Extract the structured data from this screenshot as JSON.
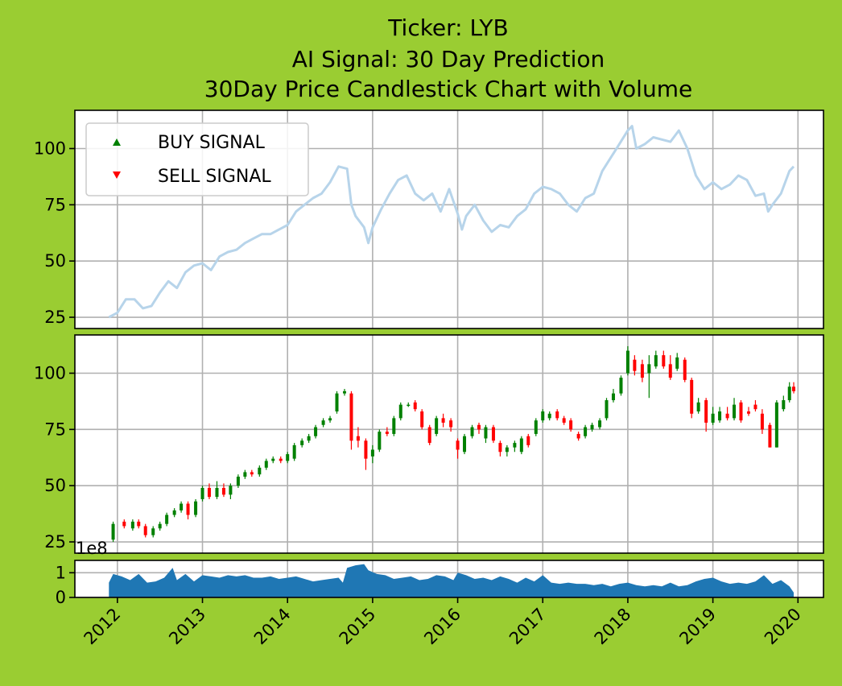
{
  "chart_data": {
    "title_lines": [
      "Ticker: LYB",
      "AI Signal: 30 Day Prediction",
      "30Day Price Candlestick Chart with Volume"
    ],
    "type": "line+candlestick+area",
    "x_ticks": [
      "2012",
      "2013",
      "2014",
      "2015",
      "2016",
      "2017",
      "2018",
      "2019",
      "2020"
    ],
    "x_range": [
      2011.5,
      2020.3
    ],
    "y_ticks_price": [
      25,
      50,
      75,
      100
    ],
    "y_range_price": [
      20,
      117
    ],
    "y_ticks_volume": [
      0,
      1
    ],
    "y_range_volume": [
      0,
      1.5
    ],
    "volume_offset_label": "1e8",
    "legend": [
      {
        "label": "BUY SIGNAL",
        "color": "#008000",
        "marker": "up-triangle"
      },
      {
        "label": "SELL SIGNAL",
        "color": "#ff0000",
        "marker": "down-triangle"
      }
    ],
    "price_line": {
      "name": "Close",
      "color": "#b7d4ea",
      "x": [
        2011.9,
        2012.0,
        2012.1,
        2012.2,
        2012.3,
        2012.4,
        2012.5,
        2012.6,
        2012.7,
        2012.8,
        2012.9,
        2013.0,
        2013.1,
        2013.2,
        2013.3,
        2013.4,
        2013.5,
        2013.6,
        2013.7,
        2013.8,
        2013.9,
        2014.0,
        2014.1,
        2014.2,
        2014.3,
        2014.4,
        2014.5,
        2014.6,
        2014.7,
        2014.75,
        2014.8,
        2014.9,
        2014.95,
        2015.0,
        2015.1,
        2015.2,
        2015.3,
        2015.4,
        2015.5,
        2015.6,
        2015.7,
        2015.8,
        2015.9,
        2016.0,
        2016.05,
        2016.1,
        2016.2,
        2016.3,
        2016.4,
        2016.5,
        2016.6,
        2016.7,
        2016.8,
        2016.9,
        2017.0,
        2017.1,
        2017.2,
        2017.3,
        2017.4,
        2017.5,
        2017.6,
        2017.7,
        2017.8,
        2017.9,
        2018.0,
        2018.05,
        2018.1,
        2018.2,
        2018.3,
        2018.4,
        2018.5,
        2018.6,
        2018.7,
        2018.8,
        2018.9,
        2019.0,
        2019.1,
        2019.2,
        2019.3,
        2019.4,
        2019.5,
        2019.6,
        2019.65,
        2019.7,
        2019.8,
        2019.9,
        2019.95
      ],
      "y": [
        25,
        27,
        33,
        33,
        29,
        30,
        36,
        41,
        38,
        45,
        48,
        49,
        46,
        52,
        54,
        55,
        58,
        60,
        62,
        62,
        64,
        66,
        72,
        75,
        78,
        80,
        85,
        92,
        91,
        75,
        70,
        65,
        58,
        65,
        73,
        80,
        86,
        88,
        80,
        77,
        80,
        72,
        82,
        71,
        64,
        70,
        75,
        68,
        63,
        66,
        65,
        70,
        73,
        80,
        83,
        82,
        80,
        75,
        72,
        78,
        80,
        90,
        96,
        102,
        108,
        110,
        100,
        102,
        105,
        104,
        103,
        108,
        100,
        88,
        82,
        85,
        82,
        84,
        88,
        86,
        79,
        80,
        72,
        75,
        80,
        90,
        92
      ]
    },
    "candles": [
      {
        "x": 2011.95,
        "o": 26,
        "c": 33,
        "h": 34,
        "l": 25
      },
      {
        "x": 2012.08,
        "o": 34,
        "c": 32,
        "h": 35,
        "l": 31
      },
      {
        "x": 2012.18,
        "o": 31,
        "c": 34,
        "h": 35,
        "l": 30
      },
      {
        "x": 2012.25,
        "o": 34,
        "c": 32,
        "h": 35,
        "l": 31
      },
      {
        "x": 2012.33,
        "o": 32,
        "c": 28,
        "h": 33,
        "l": 27
      },
      {
        "x": 2012.42,
        "o": 28,
        "c": 31,
        "h": 32,
        "l": 27
      },
      {
        "x": 2012.5,
        "o": 31,
        "c": 33,
        "h": 34,
        "l": 30
      },
      {
        "x": 2012.58,
        "o": 33,
        "c": 37,
        "h": 38,
        "l": 32
      },
      {
        "x": 2012.67,
        "o": 37,
        "c": 39,
        "h": 40,
        "l": 36
      },
      {
        "x": 2012.75,
        "o": 39,
        "c": 42,
        "h": 43,
        "l": 38
      },
      {
        "x": 2012.83,
        "o": 42,
        "c": 37,
        "h": 43,
        "l": 35
      },
      {
        "x": 2012.92,
        "o": 37,
        "c": 43,
        "h": 44,
        "l": 36
      },
      {
        "x": 2013.0,
        "o": 44,
        "c": 49,
        "h": 50,
        "l": 43
      },
      {
        "x": 2013.08,
        "o": 49,
        "c": 45,
        "h": 51,
        "l": 44
      },
      {
        "x": 2013.17,
        "o": 45,
        "c": 49,
        "h": 52,
        "l": 44
      },
      {
        "x": 2013.25,
        "o": 49,
        "c": 46,
        "h": 51,
        "l": 45
      },
      {
        "x": 2013.33,
        "o": 46,
        "c": 50,
        "h": 51,
        "l": 44
      },
      {
        "x": 2013.42,
        "o": 50,
        "c": 54,
        "h": 55,
        "l": 49
      },
      {
        "x": 2013.5,
        "o": 54,
        "c": 56,
        "h": 57,
        "l": 53
      },
      {
        "x": 2013.58,
        "o": 56,
        "c": 55,
        "h": 57,
        "l": 54
      },
      {
        "x": 2013.67,
        "o": 55,
        "c": 58,
        "h": 59,
        "l": 54
      },
      {
        "x": 2013.75,
        "o": 58,
        "c": 61,
        "h": 62,
        "l": 57
      },
      {
        "x": 2013.83,
        "o": 61,
        "c": 62,
        "h": 63,
        "l": 60
      },
      {
        "x": 2013.92,
        "o": 62,
        "c": 61,
        "h": 63,
        "l": 60
      },
      {
        "x": 2014.0,
        "o": 61,
        "c": 64,
        "h": 65,
        "l": 60
      },
      {
        "x": 2014.08,
        "o": 62,
        "c": 68,
        "h": 69,
        "l": 61
      },
      {
        "x": 2014.17,
        "o": 68,
        "c": 70,
        "h": 71,
        "l": 67
      },
      {
        "x": 2014.25,
        "o": 70,
        "c": 72,
        "h": 73,
        "l": 69
      },
      {
        "x": 2014.33,
        "o": 72,
        "c": 76,
        "h": 77,
        "l": 71
      },
      {
        "x": 2014.42,
        "o": 77,
        "c": 79,
        "h": 80,
        "l": 76
      },
      {
        "x": 2014.5,
        "o": 79,
        "c": 80,
        "h": 81,
        "l": 78
      },
      {
        "x": 2014.58,
        "o": 83,
        "c": 91,
        "h": 92,
        "l": 82
      },
      {
        "x": 2014.67,
        "o": 91,
        "c": 92,
        "h": 93,
        "l": 90
      },
      {
        "x": 2014.75,
        "o": 91,
        "c": 70,
        "h": 92,
        "l": 66
      },
      {
        "x": 2014.83,
        "o": 72,
        "c": 70,
        "h": 76,
        "l": 67
      },
      {
        "x": 2014.92,
        "o": 70,
        "c": 62,
        "h": 71,
        "l": 57
      },
      {
        "x": 2015.0,
        "o": 63,
        "c": 66,
        "h": 68,
        "l": 60
      },
      {
        "x": 2015.08,
        "o": 66,
        "c": 74,
        "h": 75,
        "l": 65
      },
      {
        "x": 2015.17,
        "o": 74,
        "c": 73,
        "h": 76,
        "l": 72
      },
      {
        "x": 2015.25,
        "o": 73,
        "c": 80,
        "h": 81,
        "l": 72
      },
      {
        "x": 2015.33,
        "o": 80,
        "c": 86,
        "h": 87,
        "l": 79
      },
      {
        "x": 2015.42,
        "o": 86,
        "c": 86,
        "h": 87,
        "l": 85
      },
      {
        "x": 2015.5,
        "o": 87,
        "c": 84,
        "h": 88,
        "l": 83
      },
      {
        "x": 2015.58,
        "o": 83,
        "c": 76,
        "h": 84,
        "l": 75
      },
      {
        "x": 2015.67,
        "o": 76,
        "c": 69,
        "h": 77,
        "l": 68
      },
      {
        "x": 2015.75,
        "o": 73,
        "c": 80,
        "h": 81,
        "l": 72
      },
      {
        "x": 2015.83,
        "o": 80,
        "c": 78,
        "h": 82,
        "l": 76
      },
      {
        "x": 2015.92,
        "o": 79,
        "c": 76,
        "h": 80,
        "l": 74
      },
      {
        "x": 2016.0,
        "o": 70,
        "c": 66,
        "h": 71,
        "l": 62
      },
      {
        "x": 2016.08,
        "o": 65,
        "c": 72,
        "h": 73,
        "l": 64
      },
      {
        "x": 2016.17,
        "o": 72,
        "c": 76,
        "h": 77,
        "l": 71
      },
      {
        "x": 2016.25,
        "o": 77,
        "c": 75,
        "h": 78,
        "l": 73
      },
      {
        "x": 2016.33,
        "o": 71,
        "c": 76,
        "h": 77,
        "l": 69
      },
      {
        "x": 2016.42,
        "o": 76,
        "c": 70,
        "h": 77,
        "l": 69
      },
      {
        "x": 2016.5,
        "o": 69,
        "c": 65,
        "h": 70,
        "l": 63
      },
      {
        "x": 2016.58,
        "o": 65,
        "c": 67,
        "h": 68,
        "l": 63
      },
      {
        "x": 2016.67,
        "o": 67,
        "c": 69,
        "h": 70,
        "l": 65
      },
      {
        "x": 2016.75,
        "o": 65,
        "c": 71,
        "h": 72,
        "l": 64
      },
      {
        "x": 2016.83,
        "o": 72,
        "c": 68,
        "h": 73,
        "l": 67
      },
      {
        "x": 2016.92,
        "o": 73,
        "c": 79,
        "h": 80,
        "l": 72
      },
      {
        "x": 2017.0,
        "o": 79,
        "c": 83,
        "h": 84,
        "l": 78
      },
      {
        "x": 2017.08,
        "o": 80,
        "c": 82,
        "h": 83,
        "l": 79
      },
      {
        "x": 2017.17,
        "o": 83,
        "c": 80,
        "h": 84,
        "l": 79
      },
      {
        "x": 2017.25,
        "o": 80,
        "c": 78,
        "h": 81,
        "l": 77
      },
      {
        "x": 2017.33,
        "o": 79,
        "c": 75,
        "h": 80,
        "l": 74
      },
      {
        "x": 2017.42,
        "o": 73,
        "c": 71,
        "h": 74,
        "l": 70
      },
      {
        "x": 2017.5,
        "o": 72,
        "c": 76,
        "h": 77,
        "l": 71
      },
      {
        "x": 2017.58,
        "o": 75,
        "c": 77,
        "h": 78,
        "l": 74
      },
      {
        "x": 2017.67,
        "o": 76,
        "c": 79,
        "h": 80,
        "l": 75
      },
      {
        "x": 2017.75,
        "o": 80,
        "c": 88,
        "h": 89,
        "l": 79
      },
      {
        "x": 2017.83,
        "o": 88,
        "c": 91,
        "h": 93,
        "l": 87
      },
      {
        "x": 2017.92,
        "o": 91,
        "c": 98,
        "h": 99,
        "l": 90
      },
      {
        "x": 2018.0,
        "o": 100,
        "c": 110,
        "h": 112,
        "l": 99
      },
      {
        "x": 2018.08,
        "o": 106,
        "c": 101,
        "h": 108,
        "l": 99
      },
      {
        "x": 2018.17,
        "o": 104,
        "c": 98,
        "h": 106,
        "l": 96
      },
      {
        "x": 2018.25,
        "o": 100,
        "c": 104,
        "h": 108,
        "l": 89
      },
      {
        "x": 2018.33,
        "o": 103,
        "c": 108,
        "h": 110,
        "l": 102
      },
      {
        "x": 2018.42,
        "o": 108,
        "c": 103,
        "h": 110,
        "l": 102
      },
      {
        "x": 2018.5,
        "o": 104,
        "c": 98,
        "h": 108,
        "l": 97
      },
      {
        "x": 2018.58,
        "o": 102,
        "c": 107,
        "h": 109,
        "l": 101
      },
      {
        "x": 2018.67,
        "o": 106,
        "c": 97,
        "h": 107,
        "l": 96
      },
      {
        "x": 2018.75,
        "o": 97,
        "c": 82,
        "h": 98,
        "l": 80
      },
      {
        "x": 2018.83,
        "o": 83,
        "c": 87,
        "h": 89,
        "l": 82
      },
      {
        "x": 2018.92,
        "o": 88,
        "c": 78,
        "h": 89,
        "l": 74
      },
      {
        "x": 2019.0,
        "o": 78,
        "c": 82,
        "h": 85,
        "l": 77
      },
      {
        "x": 2019.08,
        "o": 79,
        "c": 83,
        "h": 85,
        "l": 78
      },
      {
        "x": 2019.17,
        "o": 82,
        "c": 80,
        "h": 85,
        "l": 79
      },
      {
        "x": 2019.25,
        "o": 80,
        "c": 86,
        "h": 89,
        "l": 79
      },
      {
        "x": 2019.33,
        "o": 87,
        "c": 79,
        "h": 88,
        "l": 78
      },
      {
        "x": 2019.42,
        "o": 83,
        "c": 82,
        "h": 85,
        "l": 81
      },
      {
        "x": 2019.5,
        "o": 86,
        "c": 84,
        "h": 88,
        "l": 83
      },
      {
        "x": 2019.58,
        "o": 82,
        "c": 75,
        "h": 84,
        "l": 73
      },
      {
        "x": 2019.67,
        "o": 77,
        "c": 67,
        "h": 78,
        "l": 67
      },
      {
        "x": 2019.75,
        "o": 67,
        "c": 87,
        "h": 88,
        "l": 67
      },
      {
        "x": 2019.83,
        "o": 84,
        "c": 88,
        "h": 90,
        "l": 83
      },
      {
        "x": 2019.9,
        "o": 88,
        "c": 94,
        "h": 96,
        "l": 87
      },
      {
        "x": 2019.95,
        "o": 94,
        "c": 92,
        "h": 96,
        "l": 91
      }
    ],
    "volume": {
      "color": "#1f77b4",
      "unit": "1e8",
      "x": [
        2011.9,
        2011.95,
        2012.05,
        2012.15,
        2012.25,
        2012.35,
        2012.45,
        2012.55,
        2012.65,
        2012.7,
        2012.8,
        2012.9,
        2013.0,
        2013.1,
        2013.2,
        2013.3,
        2013.4,
        2013.5,
        2013.6,
        2013.7,
        2013.8,
        2013.9,
        2014.0,
        2014.1,
        2014.2,
        2014.3,
        2014.4,
        2014.5,
        2014.6,
        2014.65,
        2014.7,
        2014.8,
        2014.9,
        2014.95,
        2015.05,
        2015.15,
        2015.25,
        2015.35,
        2015.45,
        2015.55,
        2015.65,
        2015.75,
        2015.85,
        2015.95,
        2016.0,
        2016.1,
        2016.2,
        2016.3,
        2016.4,
        2016.5,
        2016.6,
        2016.7,
        2016.8,
        2016.9,
        2017.0,
        2017.1,
        2017.2,
        2017.3,
        2017.4,
        2017.5,
        2017.6,
        2017.7,
        2017.8,
        2017.9,
        2018.0,
        2018.1,
        2018.2,
        2018.3,
        2018.4,
        2018.5,
        2018.6,
        2018.7,
        2018.8,
        2018.9,
        2019.0,
        2019.1,
        2019.2,
        2019.3,
        2019.4,
        2019.5,
        2019.6,
        2019.7,
        2019.8,
        2019.9,
        2019.95
      ],
      "y": [
        0.6,
        0.95,
        0.85,
        0.7,
        0.95,
        0.6,
        0.65,
        0.8,
        1.2,
        0.7,
        0.95,
        0.65,
        0.9,
        0.85,
        0.8,
        0.9,
        0.85,
        0.9,
        0.8,
        0.8,
        0.85,
        0.75,
        0.8,
        0.85,
        0.75,
        0.65,
        0.7,
        0.75,
        0.8,
        0.6,
        1.2,
        1.3,
        1.35,
        1.1,
        0.95,
        0.9,
        0.75,
        0.8,
        0.85,
        0.7,
        0.75,
        0.9,
        0.85,
        0.7,
        1.0,
        0.9,
        0.75,
        0.8,
        0.7,
        0.85,
        0.75,
        0.6,
        0.8,
        0.65,
        0.9,
        0.6,
        0.55,
        0.6,
        0.55,
        0.55,
        0.5,
        0.55,
        0.45,
        0.55,
        0.6,
        0.5,
        0.45,
        0.5,
        0.45,
        0.6,
        0.45,
        0.5,
        0.65,
        0.75,
        0.8,
        0.65,
        0.55,
        0.6,
        0.55,
        0.65,
        0.9,
        0.55,
        0.7,
        0.45,
        0.2
      ]
    }
  }
}
